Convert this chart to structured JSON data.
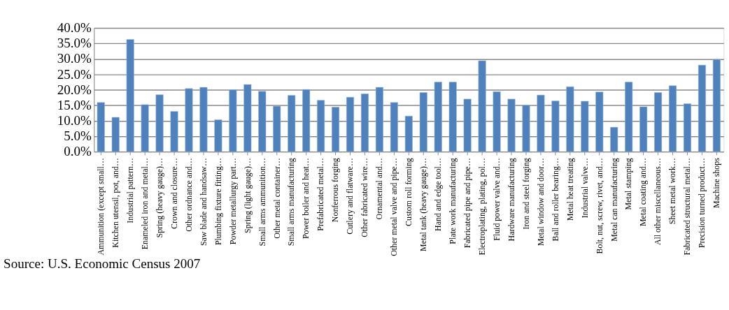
{
  "chart_data": {
    "type": "bar",
    "categories": [
      "Ammunition (except small…",
      "Kitchen utensil, pot, and…",
      "Industrial pattern…",
      "Enameled iron and metal…",
      "Spring (heavy gauge)…",
      "Crown and closure…",
      "Other ordnance and…",
      "Saw blade and handsaw…",
      "Plumbing fixture fitting…",
      "Powder metallurgy part…",
      "Spring (light gauge)…",
      "Small arms ammunition…",
      "Other metal container…",
      "Small arms manufacturing",
      "Power boiler and heat…",
      "Prefabricated metal…",
      "Nonferrous forging",
      "Cutlery and flatware…",
      "Other fabricated wire…",
      "Ornamental and…",
      "Other metal valve and pipe…",
      "Custom roll forming",
      "Metal tank (heavy gauge)…",
      "Hand and edge tool…",
      "Plate work manufacturing",
      "Fabricated pipe and pipe…",
      "Electroplating, plating, pol…",
      "Fluid power valve and…",
      "Hardware manufacturing",
      "Iron and steel forging",
      "Metal window and door…",
      "Ball and roller bearing…",
      "Metal heat treating",
      "Industrial valve…",
      "Bolt, nut, screw, rivet, and…",
      "Metal can manufacturing",
      "Metal stamping",
      "Metal coating and…",
      "All other miscellaneous…",
      "Sheet metal work…",
      "Fabricated structural metal…",
      "Precision turned product…",
      "Machine shops"
    ],
    "values": [
      15.9,
      11.1,
      36.3,
      15.2,
      18.4,
      13.0,
      20.4,
      20.8,
      10.3,
      20.0,
      21.7,
      19.5,
      14.7,
      18.2,
      20.1,
      16.6,
      14.4,
      17.6,
      18.7,
      20.8,
      15.9,
      11.5,
      19.1,
      22.5,
      22.5,
      17.0,
      29.4,
      19.4,
      17.0,
      15.0,
      18.3,
      16.4,
      21.0,
      16.3,
      19.3,
      7.9,
      22.5,
      14.5,
      19.1,
      21.3,
      15.5,
      28.0,
      29.8
    ],
    "color": "#4f81bd",
    "ylim": [
      0,
      40
    ],
    "yticks": [
      {
        "value": 0,
        "label": "0.0%"
      },
      {
        "value": 5,
        "label": "5.0%"
      },
      {
        "value": 10,
        "label": "10.0%"
      },
      {
        "value": 15,
        "label": "15.0%"
      },
      {
        "value": 20,
        "label": "20.0%"
      },
      {
        "value": 25,
        "label": "25.0%"
      },
      {
        "value": 30,
        "label": "30.0%"
      },
      {
        "value": 35,
        "label": "35.0%"
      },
      {
        "value": 40,
        "label": "40.0%"
      }
    ],
    "grid": "y",
    "annotations": [
      "Source: U.S. Economic Census 2007"
    ]
  }
}
